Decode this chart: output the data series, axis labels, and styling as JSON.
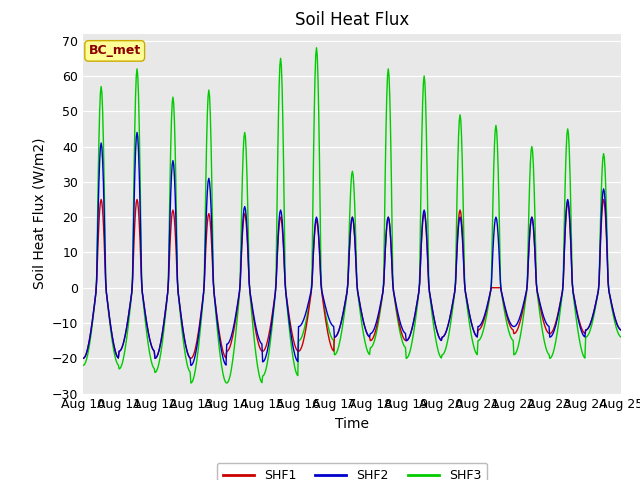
{
  "title": "Soil Heat Flux",
  "ylabel": "Soil Heat Flux (W/m2)",
  "xlabel": "Time",
  "ylim": [
    -30,
    72
  ],
  "yticks": [
    -30,
    -20,
    -10,
    0,
    10,
    20,
    30,
    40,
    50,
    60,
    70
  ],
  "xtick_labels": [
    "Aug 10",
    "Aug 11",
    "Aug 12",
    "Aug 13",
    "Aug 14",
    "Aug 15",
    "Aug 16",
    "Aug 17",
    "Aug 18",
    "Aug 19",
    "Aug 20",
    "Aug 21",
    "Aug 22",
    "Aug 23",
    "Aug 24",
    "Aug 25"
  ],
  "color_shf1": "#cc0000",
  "color_shf2": "#0000cc",
  "color_shf3": "#00cc00",
  "legend_label1": "SHF1",
  "legend_label2": "SHF2",
  "legend_label3": "SHF3",
  "annotation_text": "BC_met",
  "annotation_color": "#8b0000",
  "annotation_bg": "#ffff99",
  "plot_bg": "#e8e8e8",
  "fig_bg": "#ffffff",
  "title_fontsize": 12,
  "axis_fontsize": 10,
  "tick_fontsize": 9,
  "linewidth": 1.0,
  "shf1_peaks": [
    25,
    25,
    22,
    21,
    21,
    20,
    19,
    20,
    20,
    21,
    22,
    0,
    20,
    24,
    25
  ],
  "shf2_peaks": [
    41,
    44,
    36,
    31,
    23,
    22,
    20,
    20,
    20,
    22,
    20,
    20,
    20,
    25,
    28
  ],
  "shf3_peaks": [
    57,
    62,
    54,
    56,
    44,
    65,
    68,
    33,
    62,
    60,
    49,
    46,
    40,
    45,
    38
  ],
  "shf1_troughs": [
    -20,
    -18,
    -20,
    -20,
    -18,
    -18,
    -18,
    -14,
    -15,
    -15,
    -14,
    -12,
    -13,
    -13,
    -12
  ],
  "shf2_troughs": [
    -20,
    -18,
    -20,
    -22,
    -16,
    -21,
    -11,
    -14,
    -13,
    -15,
    -14,
    -11,
    -11,
    -14,
    -12
  ],
  "shf3_troughs": [
    -22,
    -23,
    -24,
    -27,
    -27,
    -25,
    -15,
    -19,
    -17,
    -20,
    -19,
    -15,
    -19,
    -20,
    -14
  ]
}
